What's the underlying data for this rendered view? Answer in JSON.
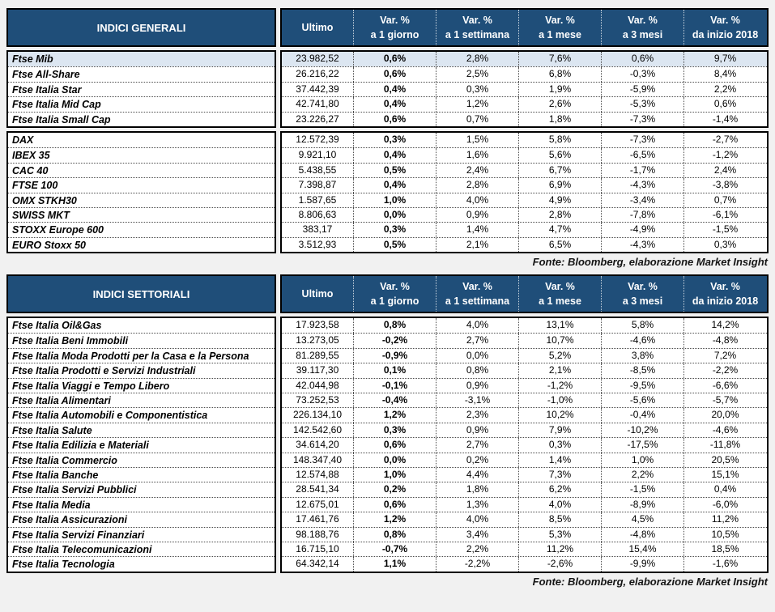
{
  "theme": {
    "header_bg": "#1F4E79",
    "header_text": "#FFFFFF",
    "highlight_row_bg": "#DCE6F1",
    "page_bg": "#F1F1F1"
  },
  "columns": {
    "ultimo": "Ultimo",
    "var_label": "Var. %",
    "var_periods": [
      "a 1 giorno",
      "a 1 settimana",
      "a 1 mese",
      "a 3 mesi",
      "da inizio 2018"
    ]
  },
  "tables": [
    {
      "id": "indici-generali",
      "title": "INDICI GENERALI",
      "fonte": "Fonte: Bloomberg, elaborazione Market Insight",
      "blocks": [
        {
          "rows": [
            {
              "name": "Ftse Mib",
              "ultimo": "23.982,52",
              "vars": [
                "0,6%",
                "2,8%",
                "7,6%",
                "0,6%",
                "9,7%"
              ],
              "highlight": true
            },
            {
              "name": "Ftse All-Share",
              "ultimo": "26.216,22",
              "vars": [
                "0,6%",
                "2,5%",
                "6,8%",
                "-0,3%",
                "8,4%"
              ]
            },
            {
              "name": "Ftse Italia Star",
              "ultimo": "37.442,39",
              "vars": [
                "0,4%",
                "0,3%",
                "1,9%",
                "-5,9%",
                "2,2%"
              ]
            },
            {
              "name": "Ftse Italia Mid Cap",
              "ultimo": "42.741,80",
              "vars": [
                "0,4%",
                "1,2%",
                "2,6%",
                "-5,3%",
                "0,6%"
              ]
            },
            {
              "name": "Ftse Italia Small Cap",
              "ultimo": "23.226,27",
              "vars": [
                "0,6%",
                "0,7%",
                "1,8%",
                "-7,3%",
                "-1,4%"
              ]
            }
          ]
        },
        {
          "rows": [
            {
              "name": "DAX",
              "ultimo": "12.572,39",
              "vars": [
                "0,3%",
                "1,5%",
                "5,8%",
                "-7,3%",
                "-2,7%"
              ]
            },
            {
              "name": "IBEX 35",
              "ultimo": "9.921,10",
              "vars": [
                "0,4%",
                "1,6%",
                "5,6%",
                "-6,5%",
                "-1,2%"
              ]
            },
            {
              "name": "CAC 40",
              "ultimo": "5.438,55",
              "vars": [
                "0,5%",
                "2,4%",
                "6,7%",
                "-1,7%",
                "2,4%"
              ]
            },
            {
              "name": "FTSE 100",
              "ultimo": "7.398,87",
              "vars": [
                "0,4%",
                "2,8%",
                "6,9%",
                "-4,3%",
                "-3,8%"
              ]
            },
            {
              "name": "OMX STKH30",
              "ultimo": "1.587,65",
              "vars": [
                "1,0%",
                "4,0%",
                "4,9%",
                "-3,4%",
                "0,7%"
              ]
            },
            {
              "name": "SWISS MKT",
              "ultimo": "8.806,63",
              "vars": [
                "0,0%",
                "0,9%",
                "2,8%",
                "-7,8%",
                "-6,1%"
              ]
            },
            {
              "name": "STOXX Europe 600",
              "ultimo": "383,17",
              "vars": [
                "0,3%",
                "1,4%",
                "4,7%",
                "-4,9%",
                "-1,5%"
              ]
            },
            {
              "name": "EURO Stoxx 50",
              "ultimo": "3.512,93",
              "vars": [
                "0,5%",
                "2,1%",
                "6,5%",
                "-4,3%",
                "0,3%"
              ]
            }
          ]
        }
      ]
    },
    {
      "id": "indici-settoriali",
      "title": "INDICI SETTORIALI",
      "fonte": "Fonte: Bloomberg, elaborazione Market Insight",
      "blocks": [
        {
          "rows": [
            {
              "name": "Ftse Italia Oil&Gas",
              "ultimo": "17.923,58",
              "vars": [
                "0,8%",
                "4,0%",
                "13,1%",
                "5,8%",
                "14,2%"
              ]
            },
            {
              "name": "Ftse Italia Beni Immobili",
              "ultimo": "13.273,05",
              "vars": [
                "-0,2%",
                "2,7%",
                "10,7%",
                "-4,6%",
                "-4,8%"
              ]
            },
            {
              "name": "Ftse Italia Moda Prodotti per la Casa e la Persona",
              "ultimo": "81.289,55",
              "vars": [
                "-0,9%",
                "0,0%",
                "5,2%",
                "3,8%",
                "7,2%"
              ]
            },
            {
              "name": "Ftse Italia Prodotti e Servizi Industriali",
              "ultimo": "39.117,30",
              "vars": [
                "0,1%",
                "0,8%",
                "2,1%",
                "-8,5%",
                "-2,2%"
              ]
            },
            {
              "name": "Ftse Italia Viaggi e Tempo Libero",
              "ultimo": "42.044,98",
              "vars": [
                "-0,1%",
                "0,9%",
                "-1,2%",
                "-9,5%",
                "-6,6%"
              ]
            },
            {
              "name": "Ftse Italia Alimentari",
              "ultimo": "73.252,53",
              "vars": [
                "-0,4%",
                "-3,1%",
                "-1,0%",
                "-5,6%",
                "-5,7%"
              ]
            },
            {
              "name": "Ftse Italia Automobili e Componentistica",
              "ultimo": "226.134,10",
              "vars": [
                "1,2%",
                "2,3%",
                "10,2%",
                "-0,4%",
                "20,0%"
              ]
            },
            {
              "name": "Ftse Italia Salute",
              "ultimo": "142.542,60",
              "vars": [
                "0,3%",
                "0,9%",
                "7,9%",
                "-10,2%",
                "-4,6%"
              ]
            },
            {
              "name": "Ftse Italia Edilizia e Materiali",
              "ultimo": "34.614,20",
              "vars": [
                "0,6%",
                "2,7%",
                "0,3%",
                "-17,5%",
                "-11,8%"
              ]
            },
            {
              "name": "Ftse Italia Commercio",
              "ultimo": "148.347,40",
              "vars": [
                "0,0%",
                "0,2%",
                "1,4%",
                "1,0%",
                "20,5%"
              ]
            },
            {
              "name": "Ftse Italia Banche",
              "ultimo": "12.574,88",
              "vars": [
                "1,0%",
                "4,4%",
                "7,3%",
                "2,2%",
                "15,1%"
              ]
            },
            {
              "name": "Ftse Italia Servizi Pubblici",
              "ultimo": "28.541,34",
              "vars": [
                "0,2%",
                "1,8%",
                "6,2%",
                "-1,5%",
                "0,4%"
              ]
            },
            {
              "name": "Ftse Italia Media",
              "ultimo": "12.675,01",
              "vars": [
                "0,6%",
                "1,3%",
                "4,0%",
                "-8,9%",
                "-6,0%"
              ]
            },
            {
              "name": "Ftse Italia Assicurazioni",
              "ultimo": "17.461,76",
              "vars": [
                "1,2%",
                "4,0%",
                "8,5%",
                "4,5%",
                "11,2%"
              ]
            },
            {
              "name": "Ftse Italia Servizi Finanziari",
              "ultimo": "98.188,76",
              "vars": [
                "0,8%",
                "3,4%",
                "5,3%",
                "-4,8%",
                "10,5%"
              ]
            },
            {
              "name": "Ftse Italia Telecomunicazioni",
              "ultimo": "16.715,10",
              "vars": [
                "-0,7%",
                "2,2%",
                "11,2%",
                "15,4%",
                "18,5%"
              ]
            },
            {
              "name": "Ftse Italia Tecnologia",
              "ultimo": "64.342,14",
              "vars": [
                "1,1%",
                "-2,2%",
                "-2,6%",
                "-9,9%",
                "-1,6%"
              ]
            }
          ]
        }
      ]
    }
  ]
}
